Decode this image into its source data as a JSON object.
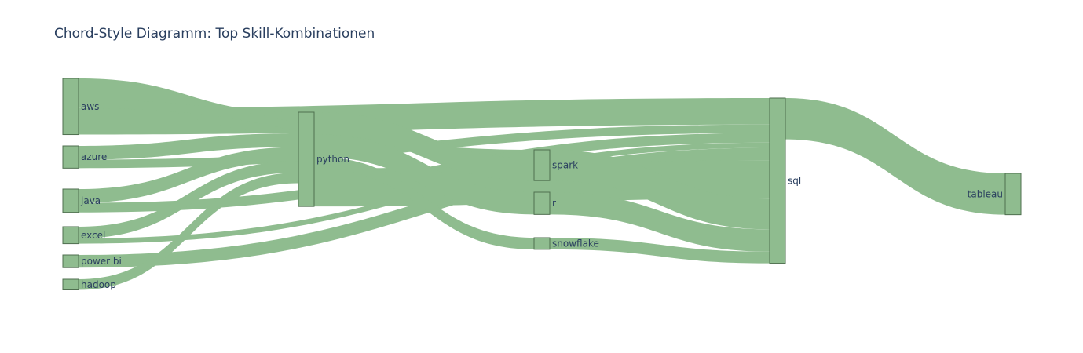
{
  "chart_data": {
    "type": "sankey",
    "title": "Chord-Style Diagramm: Top Skill-Kombinationen",
    "colors": {
      "node": "#8fbc8f",
      "link": "#8fbc8f",
      "node_border": "#4f6f4f",
      "label": "#2a3f5f"
    },
    "nodes": [
      {
        "id": "aws",
        "label": "aws"
      },
      {
        "id": "azure",
        "label": "azure"
      },
      {
        "id": "java",
        "label": "java"
      },
      {
        "id": "excel",
        "label": "excel"
      },
      {
        "id": "power_bi",
        "label": "power bi"
      },
      {
        "id": "hadoop",
        "label": "hadoop"
      },
      {
        "id": "python",
        "label": "python"
      },
      {
        "id": "spark",
        "label": "spark"
      },
      {
        "id": "r",
        "label": "r"
      },
      {
        "id": "snowflake",
        "label": "snowflake"
      },
      {
        "id": "sql",
        "label": "sql"
      },
      {
        "id": "tableau",
        "label": "tableau"
      }
    ],
    "links": [
      {
        "source": "aws",
        "target": "sql",
        "value": 25
      },
      {
        "source": "aws",
        "target": "python",
        "value": 20
      },
      {
        "source": "aws",
        "target": "spark",
        "value": 8
      },
      {
        "source": "azure",
        "target": "sql",
        "value": 8
      },
      {
        "source": "azure",
        "target": "python",
        "value": 13
      },
      {
        "source": "java",
        "target": "python",
        "value": 13
      },
      {
        "source": "java",
        "target": "sql",
        "value": 9
      },
      {
        "source": "excel",
        "target": "python",
        "value": 11
      },
      {
        "source": "excel",
        "target": "sql",
        "value": 5
      },
      {
        "source": "power_bi",
        "target": "sql",
        "value": 12
      },
      {
        "source": "hadoop",
        "target": "python",
        "value": 10
      },
      {
        "source": "python",
        "target": "sql",
        "value": 36
      },
      {
        "source": "python",
        "target": "spark",
        "value": 21
      },
      {
        "source": "python",
        "target": "r",
        "value": 21
      },
      {
        "source": "python",
        "target": "snowflake",
        "value": 11
      },
      {
        "source": "spark",
        "target": "sql",
        "value": 29
      },
      {
        "source": "r",
        "target": "sql",
        "value": 21
      },
      {
        "source": "snowflake",
        "target": "sql",
        "value": 11
      },
      {
        "source": "sql",
        "target": "tableau",
        "value": 39
      }
    ]
  }
}
